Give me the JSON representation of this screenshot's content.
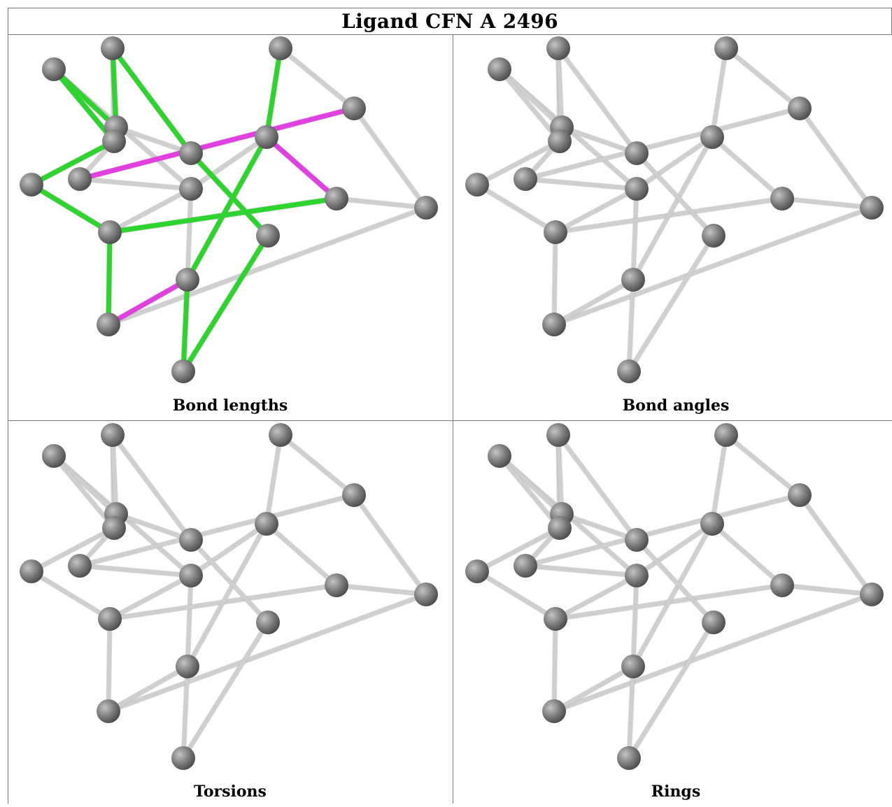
{
  "title": "Ligand CFN A 2496",
  "panels": [
    {
      "caption": "Bond lengths",
      "highlight": true
    },
    {
      "caption": "Bond angles",
      "highlight": false
    },
    {
      "caption": "Torsions",
      "highlight": false
    },
    {
      "caption": "Rings",
      "highlight": false
    }
  ],
  "colors": {
    "atom": "#7d7d7d",
    "bond": "#cfcfcf",
    "bond_ok": "#2ed42e",
    "bond_outlier": "#e040e0"
  }
}
